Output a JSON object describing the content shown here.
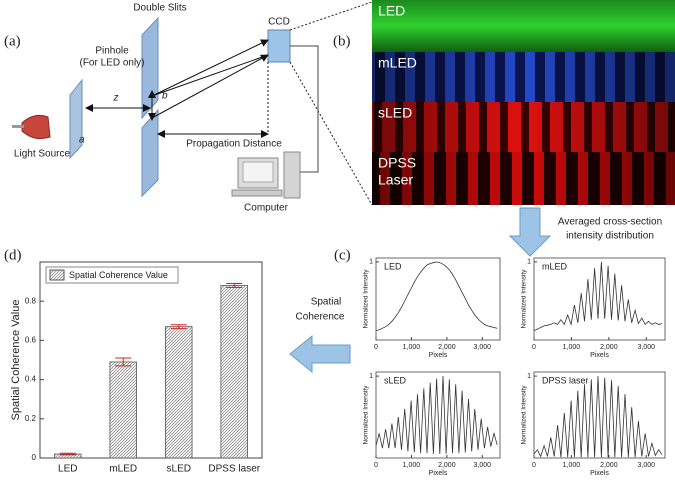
{
  "panel_labels": [
    "(a)",
    "(b)",
    "(c)",
    "(d)"
  ],
  "diagram": {
    "pinhole": [
      "Pinhole",
      "(For LED only)"
    ],
    "double_slits": "Double Slits",
    "ccd": "CCD",
    "light_source": "Light Source",
    "z": "z",
    "a": "a",
    "b": "b",
    "propagation_distance": "Propagation Distance",
    "computer": "Computer"
  },
  "camera_strips": [
    [
      "LED"
    ],
    [
      "mLED"
    ],
    [
      "sLED"
    ],
    [
      "DPSS",
      "Laser"
    ]
  ],
  "arrows": {
    "averaged": [
      "Averaged cross-section",
      "intensity distribution"
    ],
    "coherence": [
      "Spatial",
      "Coherence"
    ]
  },
  "chart_data": [
    {
      "type": "bar",
      "ylabel": "Spatial Coherence Value",
      "categories": [
        "LED",
        "mLED",
        "sLED",
        "DPSS laser"
      ],
      "series": [
        {
          "name": "Spatial Coherence Value",
          "color": "#d9d9d9",
          "values": [
            0.02,
            0.49,
            0.67,
            0.88
          ],
          "errors": [
            0.004,
            0.02,
            0.01,
            0.01
          ],
          "error_color": "#e0201b"
        }
      ],
      "ylim": [
        0,
        1
      ],
      "yticks": [
        0,
        0.2,
        0.4,
        0.6,
        0.8
      ],
      "legend": "upper left"
    },
    {
      "type": "line",
      "annotation": "LED",
      "xlabel": "Pixels",
      "ylabel": "Normalized Intensity",
      "x": [
        0,
        90,
        180,
        270,
        360,
        450,
        540,
        630,
        720,
        810,
        900,
        990,
        1080,
        1170,
        1260,
        1350,
        1440,
        1530,
        1620,
        1710,
        1800,
        1890,
        1980,
        2070,
        2160,
        2250,
        2340,
        2430,
        2520,
        2610,
        2700,
        2790,
        2880,
        2970,
        3060,
        3150,
        3240,
        3330,
        3420
      ],
      "values": [
        0.12,
        0.13,
        0.15,
        0.17,
        0.2,
        0.24,
        0.29,
        0.35,
        0.42,
        0.5,
        0.58,
        0.66,
        0.74,
        0.81,
        0.87,
        0.92,
        0.96,
        0.98,
        0.99,
        1.0,
        0.99,
        0.97,
        0.94,
        0.9,
        0.84,
        0.77,
        0.69,
        0.61,
        0.53,
        0.45,
        0.38,
        0.32,
        0.27,
        0.23,
        0.2,
        0.18,
        0.17,
        0.16,
        0.15
      ],
      "color": "#333333",
      "xlim": [
        0,
        3500
      ],
      "xticks": [
        0,
        {
          "value": 1000,
          "label": "1,000"
        },
        {
          "value": 2000,
          "label": "2,000"
        },
        {
          "value": 3000,
          "label": "3,000"
        }
      ],
      "ylim": [
        0,
        1.05
      ],
      "yticks": [
        1
      ]
    },
    {
      "type": "line",
      "annotation": "mLED",
      "xlabel": "Pixels",
      "ylabel": "Normalized Intensity",
      "x": [
        0,
        90,
        180,
        270,
        360,
        450,
        540,
        630,
        720,
        810,
        900,
        990,
        1080,
        1170,
        1260,
        1350,
        1440,
        1530,
        1620,
        1710,
        1800,
        1890,
        1980,
        2070,
        2160,
        2250,
        2340,
        2430,
        2520,
        2610,
        2700,
        2790,
        2880,
        2970,
        3060,
        3150,
        3240,
        3330,
        3420
      ],
      "values": [
        0.12,
        0.14,
        0.16,
        0.18,
        0.19,
        0.2,
        0.22,
        0.2,
        0.26,
        0.2,
        0.32,
        0.2,
        0.45,
        0.22,
        0.6,
        0.24,
        0.78,
        0.26,
        0.92,
        0.27,
        1.0,
        0.27,
        0.95,
        0.26,
        0.85,
        0.25,
        0.7,
        0.24,
        0.52,
        0.22,
        0.38,
        0.21,
        0.28,
        0.2,
        0.24,
        0.2,
        0.22,
        0.2,
        0.21
      ],
      "color": "#333333",
      "xlim": [
        0,
        3500
      ],
      "xticks": [
        0,
        {
          "value": 1000,
          "label": "1,000"
        },
        {
          "value": 2000,
          "label": "2,000"
        },
        {
          "value": 3000,
          "label": "3,000"
        }
      ],
      "ylim": [
        0,
        1.05
      ],
      "yticks": [
        1
      ]
    },
    {
      "type": "line",
      "annotation": "sLED",
      "xlabel": "Pixels",
      "ylabel": "Normalized Intensity",
      "x": [
        0,
        90,
        180,
        270,
        360,
        450,
        540,
        630,
        720,
        810,
        900,
        990,
        1080,
        1170,
        1260,
        1350,
        1440,
        1530,
        1620,
        1710,
        1800,
        1890,
        1980,
        2070,
        2160,
        2250,
        2340,
        2430,
        2520,
        2610,
        2700,
        2790,
        2880,
        2970,
        3060,
        3150,
        3240,
        3330,
        3420
      ],
      "values": [
        0.15,
        0.3,
        0.12,
        0.35,
        0.12,
        0.42,
        0.12,
        0.5,
        0.1,
        0.6,
        0.08,
        0.7,
        0.07,
        0.78,
        0.06,
        0.85,
        0.06,
        0.92,
        0.05,
        0.97,
        0.05,
        1.0,
        0.05,
        0.96,
        0.06,
        0.9,
        0.06,
        0.82,
        0.07,
        0.72,
        0.08,
        0.6,
        0.1,
        0.48,
        0.12,
        0.38,
        0.14,
        0.3,
        0.16
      ],
      "color": "#333333",
      "xlim": [
        0,
        3500
      ],
      "xticks": [
        0,
        {
          "value": 1000,
          "label": "1,000"
        },
        {
          "value": 2000,
          "label": "2,000"
        },
        {
          "value": 3000,
          "label": "3,000"
        }
      ],
      "ylim": [
        0,
        1.05
      ],
      "yticks": [
        1
      ]
    },
    {
      "type": "line",
      "annotation": "DPSS laser",
      "xlabel": "Pixels",
      "ylabel": "Normalized Intensity",
      "x": [
        0,
        90,
        180,
        270,
        360,
        450,
        540,
        630,
        720,
        810,
        900,
        990,
        1080,
        1170,
        1260,
        1350,
        1440,
        1530,
        1620,
        1710,
        1800,
        1890,
        1980,
        2070,
        2160,
        2250,
        2340,
        2430,
        2520,
        2610,
        2700,
        2790,
        2880,
        2970,
        3060,
        3150,
        3240,
        3330,
        3420
      ],
      "values": [
        0.05,
        0.1,
        0.02,
        0.15,
        0.02,
        0.25,
        0.02,
        0.4,
        0.01,
        0.55,
        0.01,
        0.7,
        0.01,
        0.82,
        0.01,
        0.9,
        0.01,
        0.96,
        0.01,
        1.0,
        0.01,
        0.98,
        0.01,
        0.95,
        0.01,
        0.88,
        0.01,
        0.78,
        0.01,
        0.62,
        0.01,
        0.45,
        0.02,
        0.3,
        0.02,
        0.18,
        0.03,
        0.1,
        0.04
      ],
      "color": "#333333",
      "xlim": [
        0,
        3500
      ],
      "xticks": [
        0,
        {
          "value": 1000,
          "label": "1,000"
        },
        {
          "value": 2000,
          "label": "2,000"
        },
        {
          "value": 3000,
          "label": "3,000"
        }
      ],
      "ylim": [
        0,
        1.05
      ],
      "yticks": [
        1
      ]
    }
  ]
}
